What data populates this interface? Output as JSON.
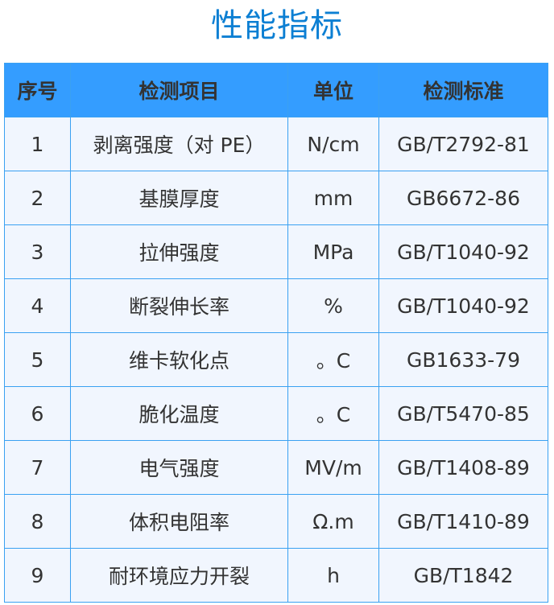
{
  "title": "性能指标",
  "colors": {
    "title": "#0c7fd3",
    "header_bg": "#349dff",
    "row_bg": "#f1f6fe",
    "border": "#3aa1f2"
  },
  "table": {
    "headers": [
      "序号",
      "检测项目",
      "单位",
      "检测标准"
    ],
    "rows": [
      [
        "1",
        "剥离强度（对 PE）",
        "N/cm",
        "GB/T2792-81"
      ],
      [
        "2",
        "基膜厚度",
        "mm",
        "GB6672-86"
      ],
      [
        "3",
        "拉伸强度",
        "MPa",
        "GB/T1040-92"
      ],
      [
        "4",
        "断裂伸长率",
        "%",
        "GB/T1040-92"
      ],
      [
        "5",
        "维卡软化点",
        "。C",
        "GB1633-79"
      ],
      [
        "6",
        "脆化温度",
        "。C",
        "GB/T5470-85"
      ],
      [
        "7",
        "电气强度",
        "MV/m",
        "GB/T1408-89"
      ],
      [
        "8",
        "体积电阻率",
        "Ω.m",
        "GB/T1410-89"
      ],
      [
        "9",
        "耐环境应力开裂",
        "h",
        "GB/T1842"
      ]
    ]
  }
}
